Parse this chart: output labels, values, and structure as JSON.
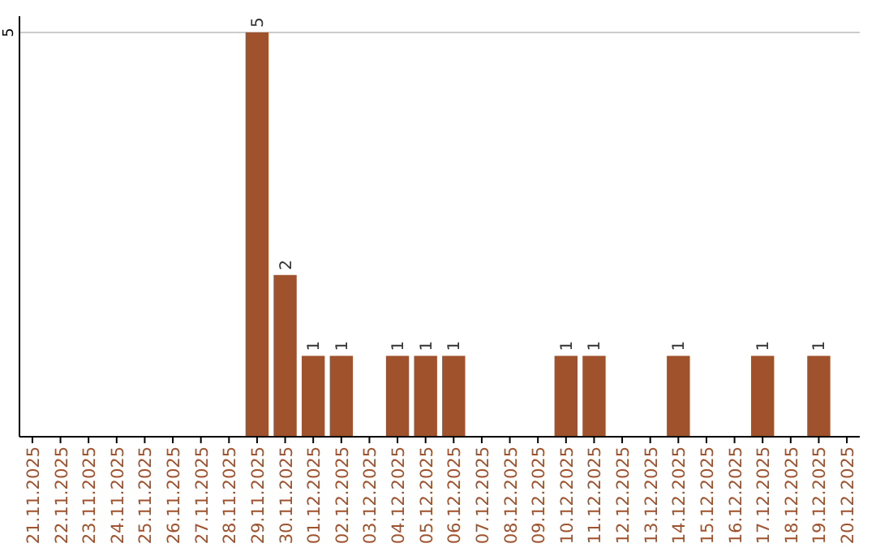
{
  "chart_data": {
    "type": "bar",
    "categories": [
      "21.11.2025",
      "22.11.2025",
      "23.11.2025",
      "24.11.2025",
      "25.11.2025",
      "26.11.2025",
      "27.11.2025",
      "28.11.2025",
      "29.11.2025",
      "30.11.2025",
      "01.12.2025",
      "02.12.2025",
      "03.12.2025",
      "04.12.2025",
      "05.12.2025",
      "06.12.2025",
      "07.12.2025",
      "08.12.2025",
      "09.12.2025",
      "10.12.2025",
      "11.12.2025",
      "12.12.2025",
      "13.12.2025",
      "14.12.2025",
      "15.12.2025",
      "16.12.2025",
      "17.12.2025",
      "18.12.2025",
      "19.12.2025",
      "20.12.2025"
    ],
    "values": [
      null,
      null,
      null,
      null,
      null,
      null,
      null,
      null,
      5,
      2,
      1,
      1,
      null,
      1,
      1,
      1,
      null,
      null,
      null,
      1,
      1,
      null,
      null,
      1,
      null,
      null,
      1,
      null,
      1,
      null
    ],
    "color": "#a0522d",
    "ylim": [
      0,
      5.2
    ],
    "yticks": [
      5
    ],
    "grid": "y",
    "data_labels": true
  }
}
